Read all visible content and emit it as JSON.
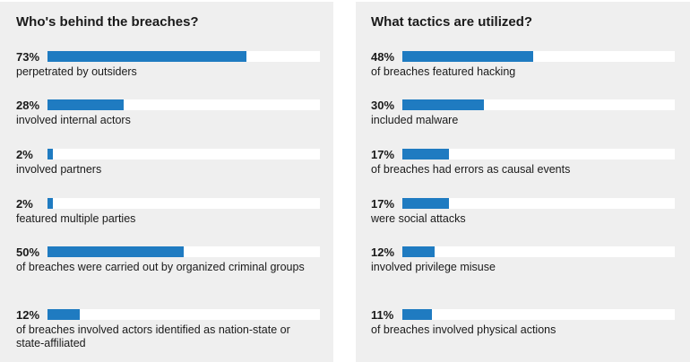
{
  "chart_data": [
    {
      "type": "bar",
      "title": "Who's behind the breaches?",
      "categories": [
        "perpetrated by outsiders",
        "involved internal actors",
        "involved partners",
        "featured multiple parties",
        "of breaches were carried out by organized criminal groups",
        "of breaches involved actors identified as nation-state or state-affiliated"
      ],
      "value_labels": [
        "73%",
        "28%",
        "2%",
        "2%",
        "50%",
        "12%"
      ],
      "values": [
        73,
        28,
        2,
        2,
        50,
        12
      ],
      "ylim": [
        0,
        100
      ],
      "bar_color": "#1f7bc1",
      "track_color": "#ffffff"
    },
    {
      "type": "bar",
      "title": "What tactics are utilized?",
      "categories": [
        "of breaches featured hacking",
        "included malware",
        "of breaches had errors as causal events",
        "were social attacks",
        "involved privilege misuse",
        "of breaches involved physical actions"
      ],
      "value_labels": [
        "48%",
        "30%",
        "17%",
        "17%",
        "12%",
        "11%"
      ],
      "values": [
        48,
        30,
        17,
        17,
        12,
        11
      ],
      "ylim": [
        0,
        100
      ],
      "bar_color": "#1f7bc1",
      "track_color": "#ffffff"
    }
  ]
}
